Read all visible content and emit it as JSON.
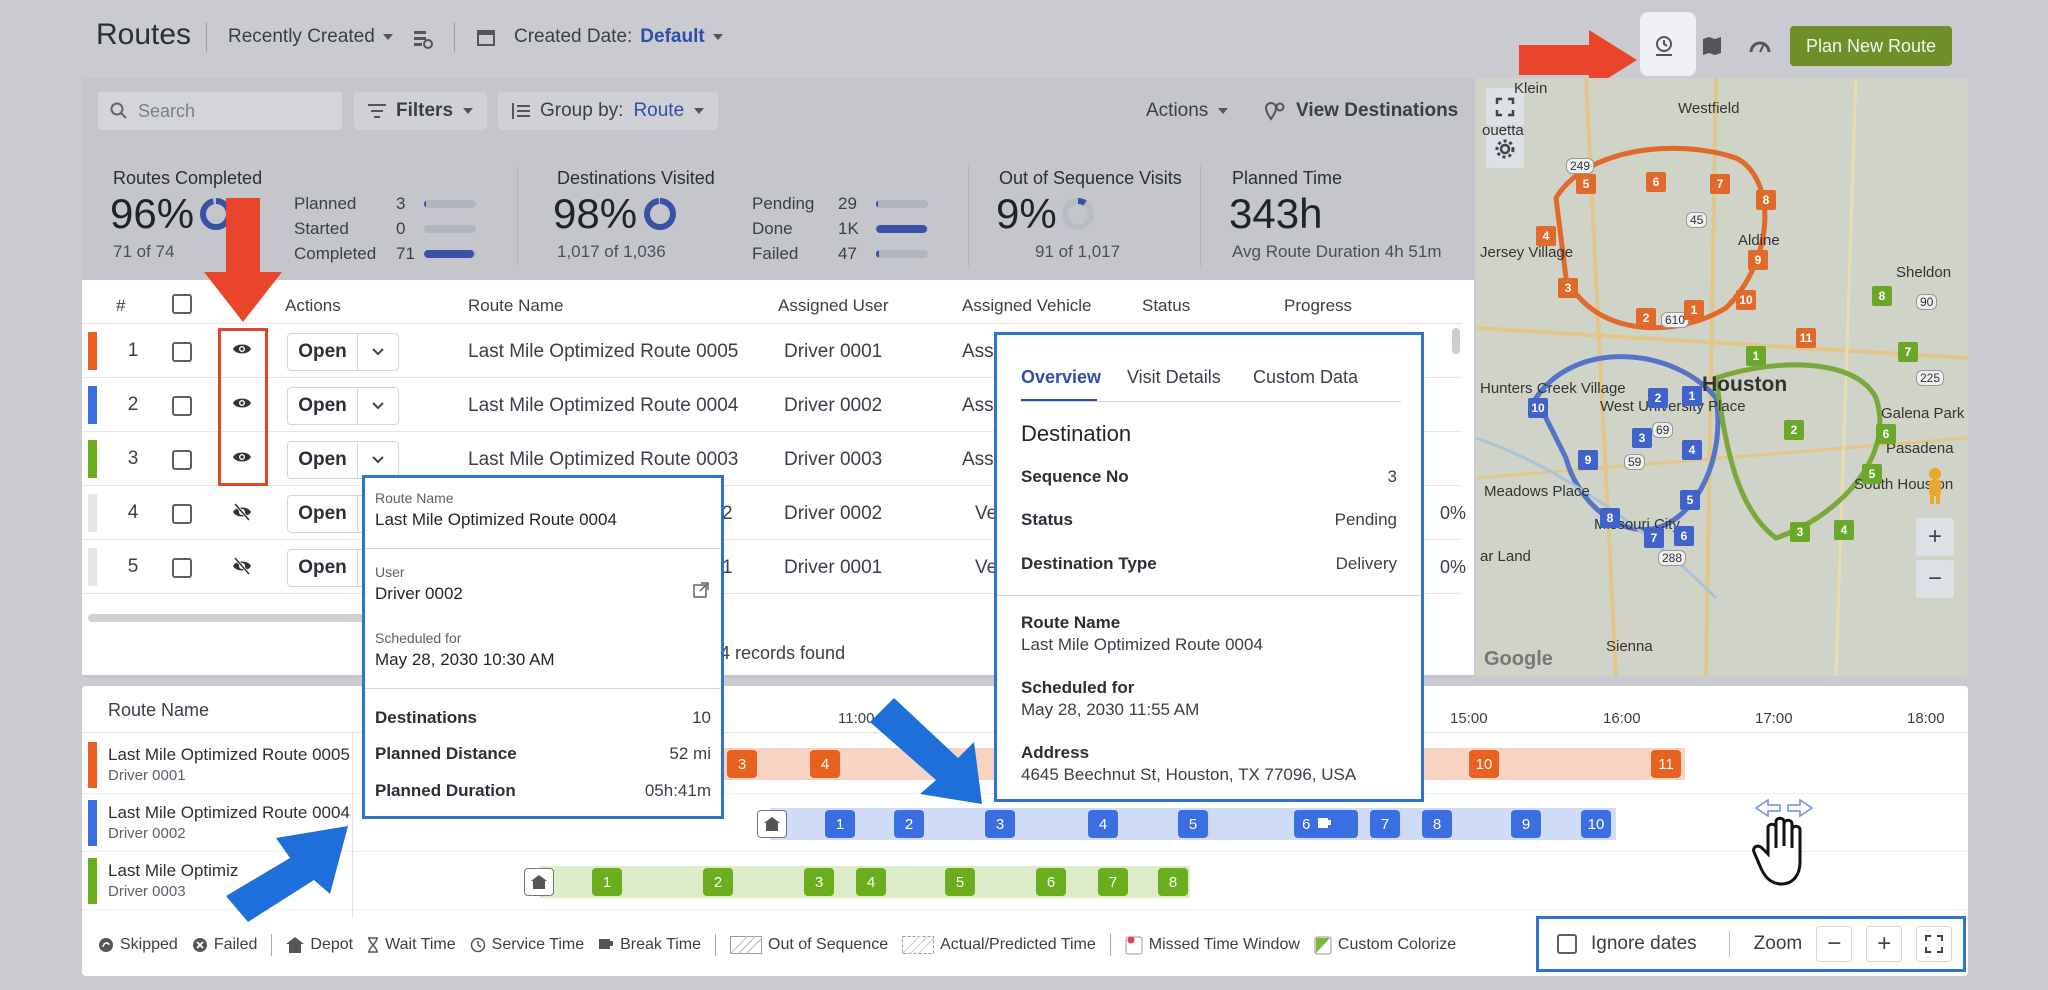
{
  "header": {
    "title": "Routes",
    "sort_label": "Recently Created",
    "date_label": "Created Date:",
    "date_value": "Default",
    "plan_button": "Plan New Route"
  },
  "toolbar": {
    "search_placeholder": "Search",
    "filters": "Filters",
    "group_by_label": "Group by:",
    "group_by_value": "Route",
    "actions": "Actions",
    "view_destinations": "View Destinations"
  },
  "stats": {
    "routes_completed": {
      "label": "Routes Completed",
      "value": "96%",
      "sub": "71 of 74",
      "progress": 0.96,
      "rows": [
        {
          "label": "Planned",
          "value": "3",
          "fraction": 0.04
        },
        {
          "label": "Started",
          "value": "0",
          "fraction": 0.0
        },
        {
          "label": "Completed",
          "value": "71",
          "fraction": 0.96
        }
      ]
    },
    "destinations_visited": {
      "label": "Destinations Visited",
      "value": "98%",
      "sub": "1,017 of 1,036",
      "progress": 0.98,
      "rows": [
        {
          "label": "Pending",
          "value": "29",
          "fraction": 0.03
        },
        {
          "label": "Done",
          "value": "1K",
          "fraction": 0.98
        },
        {
          "label": "Failed",
          "value": "47",
          "fraction": 0.05
        }
      ]
    },
    "out_of_sequence": {
      "label": "Out of Sequence Visits",
      "value": "9%",
      "sub": "91 of 1,017",
      "progress": 0.09
    },
    "planned_time": {
      "label": "Planned Time",
      "value": "343h",
      "sub": "Avg Route Duration 4h 51m"
    }
  },
  "table": {
    "headers": [
      "#",
      "Actions",
      "Route Name",
      "Assigned User",
      "Assigned Vehicle",
      "Status",
      "Progress"
    ],
    "rows": [
      {
        "num": "1",
        "open": "Open",
        "name": "Last Mile Optimized Route 0005",
        "user": "Driver 0001",
        "vehicle": "Ass",
        "progress": "",
        "color": "#e8611f",
        "visible": true
      },
      {
        "num": "2",
        "open": "Open",
        "name": "Last Mile Optimized Route 0004",
        "user": "Driver 0002",
        "vehicle": "Ass",
        "progress": "",
        "color": "#3b6ee0",
        "visible": true
      },
      {
        "num": "3",
        "open": "Open",
        "name": "Last Mile Optimized Route 0003",
        "user": "Driver 0003",
        "vehicle": "Ass",
        "progress": "",
        "color": "#6aae1e",
        "visible": true
      },
      {
        "num": "4",
        "open": "Open",
        "name": "2",
        "user": "Driver 0002",
        "vehicle": "Ve",
        "progress": "0%",
        "color": "#e6e6e6",
        "visible": false
      },
      {
        "num": "5",
        "open": "Open",
        "name": "1",
        "user": "Driver 0001",
        "vehicle": "Ve",
        "progress": "0%",
        "color": "#e6e6e6",
        "visible": false
      }
    ],
    "records_found": "4 records found"
  },
  "route_popup": {
    "route_name_label": "Route Name",
    "route_name": "Last Mile Optimized Route 0004",
    "user_label": "User",
    "user": "Driver 0002",
    "scheduled_label": "Scheduled for",
    "scheduled": "May 28, 2030 10:30 AM",
    "stats": [
      {
        "key": "Destinations",
        "value": "10"
      },
      {
        "key": "Planned Distance",
        "value": "52 mi"
      },
      {
        "key": "Planned Duration",
        "value": "05h:41m"
      }
    ]
  },
  "dest_popup": {
    "tabs": [
      "Overview",
      "Visit Details",
      "Custom Data"
    ],
    "heading": "Destination",
    "fields": [
      {
        "key": "Sequence No",
        "value": "3"
      },
      {
        "key": "Status",
        "value": "Pending"
      },
      {
        "key": "Destination Type",
        "value": "Delivery"
      }
    ],
    "route_name_label": "Route Name",
    "route_name": "Last Mile Optimized Route 0004",
    "scheduled_label": "Scheduled for",
    "scheduled": "May 28, 2030 11:55 AM",
    "address_label": "Address",
    "address": "4645 Beechnut St, Houston, TX 77096, USA"
  },
  "map": {
    "labels": [
      "Klein",
      "Westfield",
      "ouetta",
      "Aldine",
      "Jersey Village",
      "Sheldon",
      "Houston",
      "Galena Park",
      "Pasadena",
      "Hunters Creek Village",
      "West University Place",
      "Meadows Place",
      "South Houston",
      "Missouri City",
      "ar Land",
      "Sienna",
      "Google"
    ],
    "highways": [
      "249",
      "45",
      "610",
      "90",
      "69",
      "59",
      "288",
      "225"
    ],
    "zoom_in": "+",
    "zoom_out": "−"
  },
  "timeline": {
    "header": "Route Name",
    "ticks": [
      "11:00",
      "15:00",
      "16:00",
      "17:00",
      "18:00"
    ],
    "routes": [
      {
        "name": "Last Mile Optimized Route 0005",
        "driver": "Driver 0001",
        "color": "#e8611f",
        "stops": [
          "3",
          "4",
          "10",
          "11"
        ]
      },
      {
        "name": "Last Mile Optimized Route 0004",
        "driver": "Driver 0002",
        "color": "#3b6ee0",
        "stops": [
          "1",
          "2",
          "3",
          "4",
          "5",
          "6",
          "7",
          "8",
          "9",
          "10"
        ]
      },
      {
        "name": "Last Mile Optimiz",
        "driver": "Driver 0003",
        "color": "#6aae1e",
        "stops": [
          "1",
          "2",
          "3",
          "4",
          "5",
          "6",
          "7",
          "8"
        ]
      }
    ]
  },
  "legend": {
    "items": [
      "Skipped",
      "Failed",
      "Depot",
      "Wait Time",
      "Service Time",
      "Break Time",
      "Out of Sequence",
      "Actual/Predicted Time",
      "Missed Time Window",
      "Custom Colorize"
    ]
  },
  "zoom_controls": {
    "ignore_dates": "Ignore dates",
    "zoom": "Zoom",
    "minus": "−",
    "plus": "+"
  }
}
